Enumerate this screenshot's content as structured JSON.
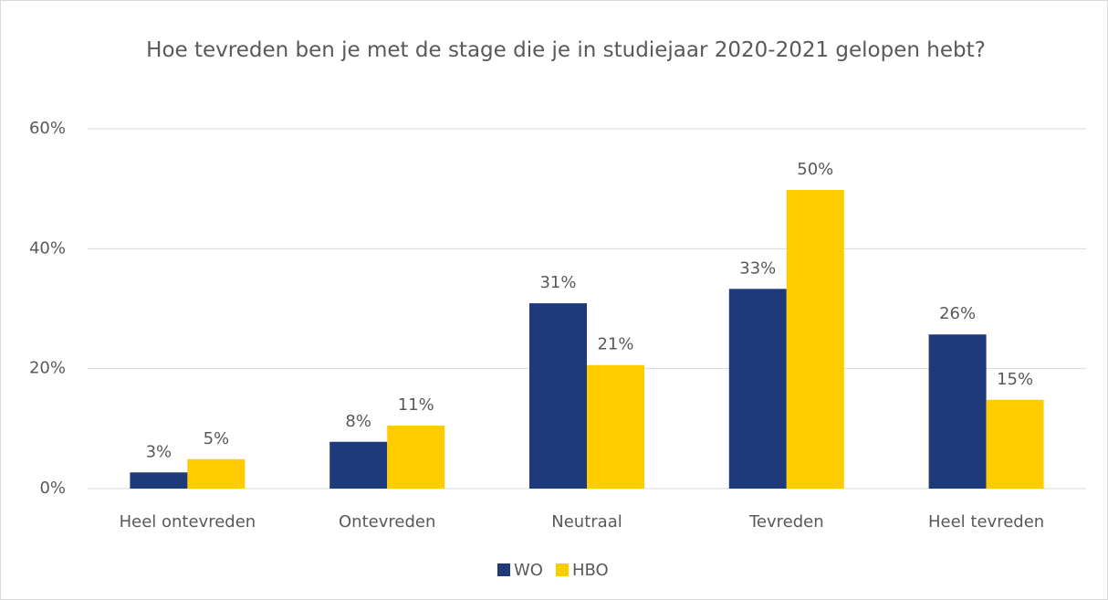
{
  "chart_data": {
    "type": "bar",
    "title": "Hoe tevreden ben je met de stage die je in studiejaar 2020-2021 gelopen hebt?",
    "categories": [
      "Heel ontevreden",
      "Ontevreden",
      "Neutraal",
      "Tevreden",
      "Heel tevreden"
    ],
    "series": [
      {
        "name": "WO",
        "color": "#1f3a7a",
        "values": [
          2.7,
          7.8,
          30.9,
          33.3,
          25.7
        ],
        "value_labels": [
          "3%",
          "8%",
          "31%",
          "33%",
          "26%"
        ]
      },
      {
        "name": "HBO",
        "color": "#ffcc00",
        "values": [
          4.9,
          10.5,
          20.6,
          49.8,
          14.8
        ],
        "value_labels": [
          "5%",
          "11%",
          "21%",
          "50%",
          "15%"
        ]
      }
    ],
    "ylim": [
      0,
      60
    ],
    "yticks": [
      {
        "value": 0,
        "label": "0%"
      },
      {
        "value": 20,
        "label": "20%"
      },
      {
        "value": 40,
        "label": "40%"
      },
      {
        "value": 60,
        "label": "60%"
      }
    ],
    "grid": true,
    "legend": "bottom"
  }
}
